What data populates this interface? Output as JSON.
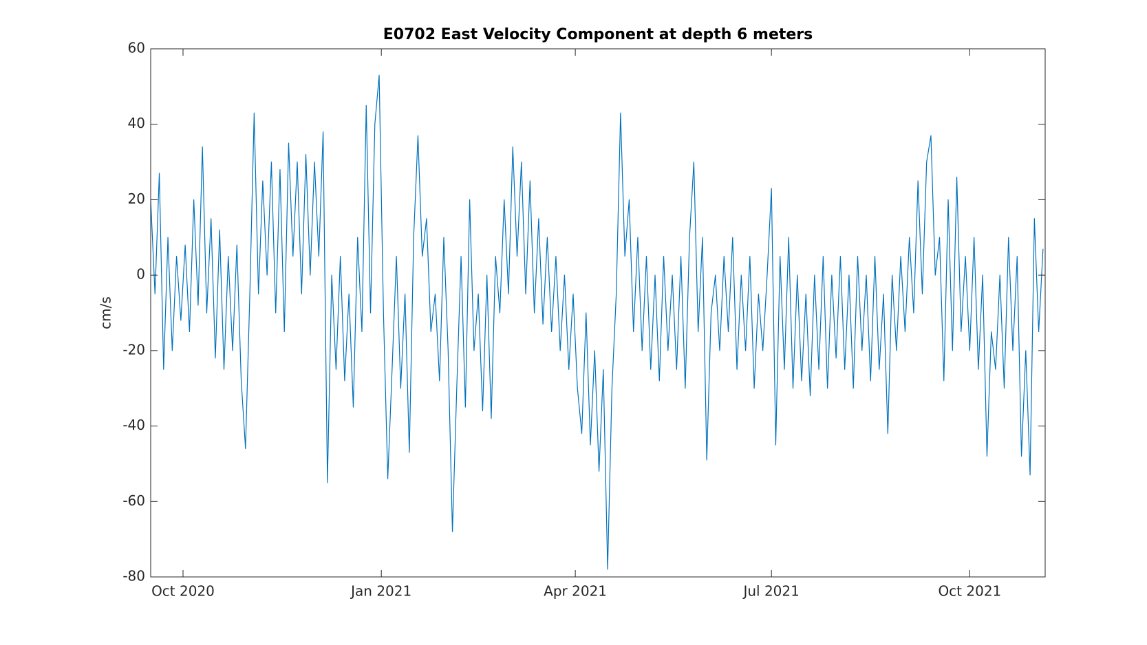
{
  "chart_data": {
    "type": "line",
    "title": "E0702 East Velocity Component at depth 6 meters",
    "ylabel": "cm/s",
    "color": "#0072BD",
    "xlim": [
      "2020-09-16",
      "2021-11-05"
    ],
    "xticks": [
      {
        "value": "2020-10-01",
        "label": "Oct 2020"
      },
      {
        "value": "2021-01-01",
        "label": "Jan 2021"
      },
      {
        "value": "2021-04-01",
        "label": "Apr 2021"
      },
      {
        "value": "2021-07-01",
        "label": "Jul 2021"
      },
      {
        "value": "2021-10-01",
        "label": "Oct 2021"
      }
    ],
    "ylim": [
      -80,
      60
    ],
    "yticks": [
      -80,
      -60,
      -40,
      -20,
      0,
      20,
      40,
      60
    ],
    "x": [
      "2020-09-16",
      "2020-09-18",
      "2020-09-20",
      "2020-09-22",
      "2020-09-24",
      "2020-09-26",
      "2020-09-28",
      "2020-09-30",
      "2020-10-02",
      "2020-10-04",
      "2020-10-06",
      "2020-10-08",
      "2020-10-10",
      "2020-10-12",
      "2020-10-14",
      "2020-10-16",
      "2020-10-18",
      "2020-10-20",
      "2020-10-22",
      "2020-10-24",
      "2020-10-26",
      "2020-10-28",
      "2020-10-30",
      "2020-11-01",
      "2020-11-03",
      "2020-11-05",
      "2020-11-07",
      "2020-11-09",
      "2020-11-11",
      "2020-11-13",
      "2020-11-15",
      "2020-11-17",
      "2020-11-19",
      "2020-11-21",
      "2020-11-23",
      "2020-11-25",
      "2020-11-27",
      "2020-11-29",
      "2020-12-01",
      "2020-12-03",
      "2020-12-05",
      "2020-12-07",
      "2020-12-09",
      "2020-12-11",
      "2020-12-13",
      "2020-12-15",
      "2020-12-17",
      "2020-12-19",
      "2020-12-21",
      "2020-12-23",
      "2020-12-25",
      "2020-12-27",
      "2020-12-29",
      "2020-12-31",
      "2021-01-02",
      "2021-01-04",
      "2021-01-06",
      "2021-01-08",
      "2021-01-10",
      "2021-01-12",
      "2021-01-14",
      "2021-01-16",
      "2021-01-18",
      "2021-01-20",
      "2021-01-22",
      "2021-01-24",
      "2021-01-26",
      "2021-01-28",
      "2021-01-30",
      "2021-02-01",
      "2021-02-03",
      "2021-02-05",
      "2021-02-07",
      "2021-02-09",
      "2021-02-11",
      "2021-02-13",
      "2021-02-15",
      "2021-02-17",
      "2021-02-19",
      "2021-02-21",
      "2021-02-23",
      "2021-02-25",
      "2021-02-27",
      "2021-03-01",
      "2021-03-03",
      "2021-03-05",
      "2021-03-07",
      "2021-03-09",
      "2021-03-11",
      "2021-03-13",
      "2021-03-15",
      "2021-03-17",
      "2021-03-19",
      "2021-03-21",
      "2021-03-23",
      "2021-03-25",
      "2021-03-27",
      "2021-03-29",
      "2021-03-31",
      "2021-04-02",
      "2021-04-04",
      "2021-04-06",
      "2021-04-08",
      "2021-04-10",
      "2021-04-12",
      "2021-04-14",
      "2021-04-16",
      "2021-04-18",
      "2021-04-20",
      "2021-04-22",
      "2021-04-24",
      "2021-04-26",
      "2021-04-28",
      "2021-04-30",
      "2021-05-02",
      "2021-05-04",
      "2021-05-06",
      "2021-05-08",
      "2021-05-10",
      "2021-05-12",
      "2021-05-14",
      "2021-05-16",
      "2021-05-18",
      "2021-05-20",
      "2021-05-22",
      "2021-05-24",
      "2021-05-26",
      "2021-05-28",
      "2021-05-30",
      "2021-06-01",
      "2021-06-03",
      "2021-06-05",
      "2021-06-07",
      "2021-06-09",
      "2021-06-11",
      "2021-06-13",
      "2021-06-15",
      "2021-06-17",
      "2021-06-19",
      "2021-06-21",
      "2021-06-23",
      "2021-06-25",
      "2021-06-27",
      "2021-06-29",
      "2021-07-01",
      "2021-07-03",
      "2021-07-05",
      "2021-07-07",
      "2021-07-09",
      "2021-07-11",
      "2021-07-13",
      "2021-07-15",
      "2021-07-17",
      "2021-07-19",
      "2021-07-21",
      "2021-07-23",
      "2021-07-25",
      "2021-07-27",
      "2021-07-29",
      "2021-07-31",
      "2021-08-02",
      "2021-08-04",
      "2021-08-06",
      "2021-08-08",
      "2021-08-10",
      "2021-08-12",
      "2021-08-14",
      "2021-08-16",
      "2021-08-18",
      "2021-08-20",
      "2021-08-22",
      "2021-08-24",
      "2021-08-26",
      "2021-08-28",
      "2021-08-30",
      "2021-09-01",
      "2021-09-03",
      "2021-09-05",
      "2021-09-07",
      "2021-09-09",
      "2021-09-11",
      "2021-09-13",
      "2021-09-15",
      "2021-09-17",
      "2021-09-19",
      "2021-09-21",
      "2021-09-23",
      "2021-09-25",
      "2021-09-27",
      "2021-09-29",
      "2021-10-01",
      "2021-10-03",
      "2021-10-05",
      "2021-10-07",
      "2021-10-09",
      "2021-10-11",
      "2021-10-13",
      "2021-10-15",
      "2021-10-17",
      "2021-10-19",
      "2021-10-21",
      "2021-10-23",
      "2021-10-25",
      "2021-10-27",
      "2021-10-29",
      "2021-10-31",
      "2021-11-02",
      "2021-11-04"
    ],
    "values": [
      20,
      -5,
      27,
      -25,
      10,
      -20,
      5,
      -12,
      8,
      -15,
      20,
      -8,
      34,
      -10,
      15,
      -22,
      12,
      -25,
      5,
      -20,
      8,
      -28,
      -46,
      -5,
      43,
      -5,
      25,
      0,
      30,
      -10,
      28,
      -15,
      35,
      5,
      30,
      -5,
      32,
      0,
      30,
      5,
      38,
      -55,
      0,
      -25,
      5,
      -28,
      -5,
      -35,
      10,
      -15,
      45,
      -10,
      40,
      53,
      -10,
      -54,
      -25,
      5,
      -30,
      -5,
      -47,
      10,
      37,
      5,
      15,
      -15,
      -5,
      -28,
      10,
      -20,
      -68,
      -30,
      5,
      -35,
      20,
      -20,
      -5,
      -36,
      0,
      -38,
      5,
      -10,
      20,
      -5,
      34,
      5,
      30,
      -5,
      25,
      -10,
      15,
      -13,
      10,
      -15,
      5,
      -20,
      0,
      -25,
      -5,
      -30,
      -42,
      -10,
      -45,
      -20,
      -52,
      -25,
      -78,
      -30,
      -5,
      43,
      5,
      20,
      -15,
      10,
      -20,
      5,
      -25,
      0,
      -28,
      5,
      -20,
      0,
      -25,
      5,
      -30,
      10,
      30,
      -15,
      10,
      -49,
      -10,
      0,
      -20,
      5,
      -15,
      10,
      -25,
      0,
      -20,
      5,
      -30,
      -5,
      -20,
      0,
      23,
      -45,
      5,
      -25,
      10,
      -30,
      0,
      -28,
      -5,
      -32,
      0,
      -25,
      5,
      -30,
      0,
      -22,
      5,
      -25,
      0,
      -30,
      5,
      -20,
      0,
      -28,
      5,
      -25,
      -5,
      -42,
      0,
      -20,
      5,
      -15,
      10,
      -10,
      25,
      -5,
      30,
      37,
      0,
      10,
      -28,
      20,
      -20,
      26,
      -15,
      5,
      -20,
      10,
      -25,
      0,
      -48,
      -15,
      -25,
      0,
      -30,
      10,
      -20,
      5,
      -48,
      -20,
      -53,
      15,
      -15,
      7
    ]
  }
}
